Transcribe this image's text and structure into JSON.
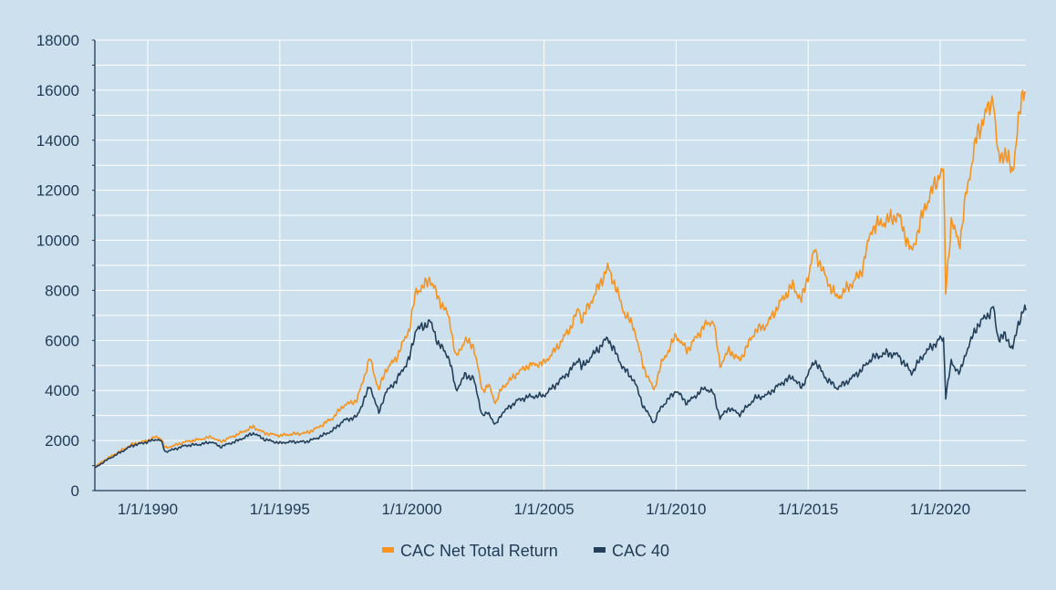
{
  "chart_data": {
    "type": "line",
    "title": "",
    "xlabel": "",
    "ylabel": "",
    "x_range": [
      "1988-01-01",
      "2023-03-31"
    ],
    "ylim": [
      0,
      18000
    ],
    "y_ticks": [
      0,
      2000,
      4000,
      6000,
      8000,
      10000,
      12000,
      14000,
      16000,
      18000
    ],
    "x_ticks": [
      {
        "date": "1990-01-01",
        "label": "1/1/1990"
      },
      {
        "date": "1995-01-01",
        "label": "1/1/1995"
      },
      {
        "date": "2000-01-01",
        "label": "1/1/2000"
      },
      {
        "date": "2005-01-01",
        "label": "1/1/2005"
      },
      {
        "date": "2010-01-01",
        "label": "1/1/2010"
      },
      {
        "date": "2015-01-01",
        "label": "1/1/2015"
      },
      {
        "date": "2020-01-01",
        "label": "1/1/2020"
      }
    ],
    "grid": true,
    "legend_position": "bottom-center",
    "series": [
      {
        "name": "CAC Net Total Return",
        "color": "#f7931e",
        "points": [
          [
            "1988-01-01",
            950
          ],
          [
            "1988-06-01",
            1250
          ],
          [
            "1989-01-01",
            1600
          ],
          [
            "1989-06-01",
            1850
          ],
          [
            "1990-01-01",
            2000
          ],
          [
            "1990-05-01",
            2150
          ],
          [
            "1990-07-01",
            2100
          ],
          [
            "1990-09-01",
            1700
          ],
          [
            "1991-01-01",
            1800
          ],
          [
            "1991-06-01",
            1950
          ],
          [
            "1992-01-01",
            2050
          ],
          [
            "1992-06-01",
            2150
          ],
          [
            "1992-10-01",
            1950
          ],
          [
            "1993-06-01",
            2250
          ],
          [
            "1994-01-01",
            2550
          ],
          [
            "1994-06-01",
            2300
          ],
          [
            "1995-01-01",
            2200
          ],
          [
            "1995-06-01",
            2250
          ],
          [
            "1996-01-01",
            2300
          ],
          [
            "1996-06-01",
            2500
          ],
          [
            "1997-01-01",
            2900
          ],
          [
            "1997-06-01",
            3400
          ],
          [
            "1997-12-01",
            3600
          ],
          [
            "1998-06-01",
            5300
          ],
          [
            "1998-10-01",
            4000
          ],
          [
            "1999-01-01",
            4800
          ],
          [
            "1999-06-01",
            5300
          ],
          [
            "1999-12-01",
            6500
          ],
          [
            "2000-03-01",
            8000
          ],
          [
            "2000-06-01",
            8100
          ],
          [
            "2000-09-01",
            8500
          ],
          [
            "2001-01-01",
            7700
          ],
          [
            "2001-06-01",
            6900
          ],
          [
            "2001-09-01",
            5300
          ],
          [
            "2002-01-01",
            6000
          ],
          [
            "2002-05-01",
            5800
          ],
          [
            "2002-09-01",
            4000
          ],
          [
            "2002-12-01",
            4200
          ],
          [
            "2003-03-01",
            3500
          ],
          [
            "2003-06-01",
            4100
          ],
          [
            "2004-01-01",
            4700
          ],
          [
            "2004-06-01",
            5000
          ],
          [
            "2005-01-01",
            5100
          ],
          [
            "2005-06-01",
            5600
          ],
          [
            "2006-01-01",
            6500
          ],
          [
            "2006-05-01",
            7300
          ],
          [
            "2006-06-01",
            6800
          ],
          [
            "2007-01-01",
            8000
          ],
          [
            "2007-06-01",
            8900
          ],
          [
            "2007-09-01",
            8300
          ],
          [
            "2008-01-01",
            7200
          ],
          [
            "2008-06-01",
            6500
          ],
          [
            "2008-10-01",
            5000
          ],
          [
            "2009-03-01",
            4000
          ],
          [
            "2009-06-01",
            5000
          ],
          [
            "2010-01-01",
            6200
          ],
          [
            "2010-06-01",
            5600
          ],
          [
            "2011-02-01",
            6600
          ],
          [
            "2011-06-01",
            6800
          ],
          [
            "2011-09-01",
            5000
          ],
          [
            "2012-01-01",
            5600
          ],
          [
            "2012-06-01",
            5200
          ],
          [
            "2013-01-01",
            6400
          ],
          [
            "2013-06-01",
            6600
          ],
          [
            "2014-01-01",
            7600
          ],
          [
            "2014-06-01",
            8200
          ],
          [
            "2014-10-01",
            7600
          ],
          [
            "2015-04-01",
            9600
          ],
          [
            "2015-09-01",
            8500
          ],
          [
            "2016-02-01",
            7700
          ],
          [
            "2016-06-01",
            8000
          ],
          [
            "2017-01-01",
            8700
          ],
          [
            "2017-06-01",
            10500
          ],
          [
            "2018-01-01",
            10800
          ],
          [
            "2018-06-01",
            11000
          ],
          [
            "2018-12-01",
            9500
          ],
          [
            "2019-06-01",
            11300
          ],
          [
            "2020-01-01",
            12700
          ],
          [
            "2020-02-15",
            12700
          ],
          [
            "2020-03-18",
            8000
          ],
          [
            "2020-06-01",
            10700
          ],
          [
            "2020-10-01",
            9900
          ],
          [
            "2021-01-01",
            12000
          ],
          [
            "2021-06-01",
            14300
          ],
          [
            "2021-12-01",
            15500
          ],
          [
            "2022-01-05",
            15700
          ],
          [
            "2022-03-08",
            13300
          ],
          [
            "2022-06-01",
            13500
          ],
          [
            "2022-09-30",
            12800
          ],
          [
            "2023-01-01",
            15000
          ],
          [
            "2023-03-01",
            16200
          ],
          [
            "2023-03-31",
            15900
          ]
        ]
      },
      {
        "name": "CAC 40",
        "color": "#243f5a",
        "points": [
          [
            "1988-01-01",
            900
          ],
          [
            "1988-06-01",
            1200
          ],
          [
            "1989-01-01",
            1550
          ],
          [
            "1989-06-01",
            1800
          ],
          [
            "1990-01-01",
            1950
          ],
          [
            "1990-05-01",
            2050
          ],
          [
            "1990-07-01",
            2000
          ],
          [
            "1990-09-01",
            1550
          ],
          [
            "1991-01-01",
            1650
          ],
          [
            "1991-06-01",
            1800
          ],
          [
            "1992-01-01",
            1850
          ],
          [
            "1992-06-01",
            1950
          ],
          [
            "1992-10-01",
            1750
          ],
          [
            "1993-06-01",
            2000
          ],
          [
            "1994-01-01",
            2300
          ],
          [
            "1994-06-01",
            2050
          ],
          [
            "1995-01-01",
            1900
          ],
          [
            "1995-06-01",
            1950
          ],
          [
            "1996-01-01",
            1950
          ],
          [
            "1996-06-01",
            2100
          ],
          [
            "1997-01-01",
            2400
          ],
          [
            "1997-06-01",
            2800
          ],
          [
            "1997-12-01",
            2950
          ],
          [
            "1998-06-01",
            4200
          ],
          [
            "1998-10-01",
            3100
          ],
          [
            "1999-01-01",
            3900
          ],
          [
            "1999-06-01",
            4400
          ],
          [
            "1999-12-01",
            5300
          ],
          [
            "2000-03-01",
            6500
          ],
          [
            "2000-06-01",
            6500
          ],
          [
            "2000-09-01",
            6800
          ],
          [
            "2001-01-01",
            5900
          ],
          [
            "2001-06-01",
            5300
          ],
          [
            "2001-09-01",
            4000
          ],
          [
            "2002-01-01",
            4600
          ],
          [
            "2002-05-01",
            4500
          ],
          [
            "2002-09-01",
            3000
          ],
          [
            "2002-12-01",
            3100
          ],
          [
            "2003-03-01",
            2600
          ],
          [
            "2003-06-01",
            3100
          ],
          [
            "2004-01-01",
            3600
          ],
          [
            "2004-06-01",
            3750
          ],
          [
            "2005-01-01",
            3800
          ],
          [
            "2005-06-01",
            4200
          ],
          [
            "2006-01-01",
            4800
          ],
          [
            "2006-05-01",
            5300
          ],
          [
            "2006-06-01",
            4900
          ],
          [
            "2007-01-01",
            5600
          ],
          [
            "2007-06-01",
            6100
          ],
          [
            "2007-09-01",
            5600
          ],
          [
            "2008-01-01",
            4900
          ],
          [
            "2008-06-01",
            4400
          ],
          [
            "2008-10-01",
            3400
          ],
          [
            "2009-03-01",
            2700
          ],
          [
            "2009-06-01",
            3300
          ],
          [
            "2010-01-01",
            4000
          ],
          [
            "2010-06-01",
            3500
          ],
          [
            "2011-02-01",
            4100
          ],
          [
            "2011-06-01",
            3900
          ],
          [
            "2011-09-01",
            2900
          ],
          [
            "2012-01-01",
            3300
          ],
          [
            "2012-06-01",
            3050
          ],
          [
            "2013-01-01",
            3700
          ],
          [
            "2013-06-01",
            3800
          ],
          [
            "2014-01-01",
            4300
          ],
          [
            "2014-06-01",
            4550
          ],
          [
            "2014-10-01",
            4100
          ],
          [
            "2015-04-01",
            5200
          ],
          [
            "2015-09-01",
            4500
          ],
          [
            "2016-02-01",
            4100
          ],
          [
            "2016-06-01",
            4300
          ],
          [
            "2017-01-01",
            4800
          ],
          [
            "2017-06-01",
            5300
          ],
          [
            "2018-01-01",
            5500
          ],
          [
            "2018-06-01",
            5400
          ],
          [
            "2018-12-01",
            4700
          ],
          [
            "2019-06-01",
            5500
          ],
          [
            "2020-01-01",
            6050
          ],
          [
            "2020-02-15",
            6050
          ],
          [
            "2020-03-18",
            3800
          ],
          [
            "2020-06-01",
            5100
          ],
          [
            "2020-10-01",
            4700
          ],
          [
            "2021-01-01",
            5600
          ],
          [
            "2021-06-01",
            6600
          ],
          [
            "2021-12-01",
            7150
          ],
          [
            "2022-01-05",
            7300
          ],
          [
            "2022-03-08",
            6100
          ],
          [
            "2022-06-01",
            6200
          ],
          [
            "2022-09-30",
            5700
          ],
          [
            "2023-01-01",
            6800
          ],
          [
            "2023-03-01",
            7300
          ],
          [
            "2023-03-31",
            7200
          ]
        ]
      }
    ]
  }
}
